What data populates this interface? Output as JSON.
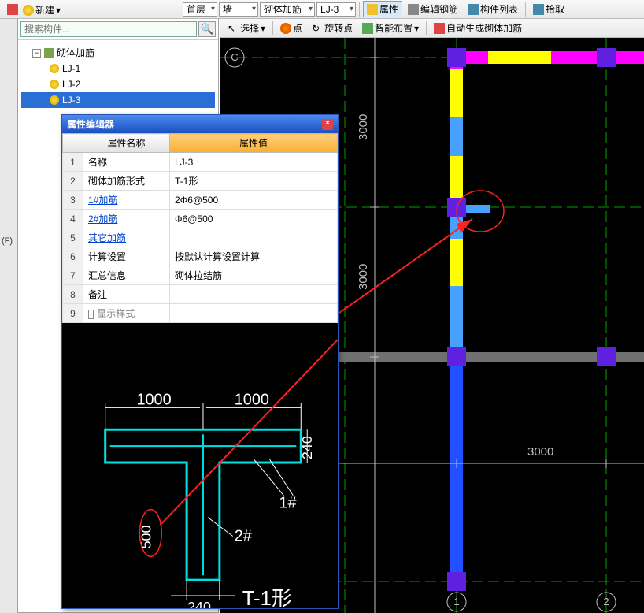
{
  "toolbar1": {
    "new": "新建",
    "dropdowns": {
      "floor": "首层",
      "type": "墙",
      "sub": "砌体加筋",
      "item": "LJ-3"
    },
    "btn_prop": "属性",
    "btn_edit": "编辑钢筋",
    "btn_list": "构件列表",
    "btn_pick": "拾取"
  },
  "toolbar2": {
    "select": "选择",
    "point": "点",
    "rotpoint": "旋转点",
    "smart": "智能布置",
    "auto": "自动生成砌体加筋"
  },
  "search": {
    "placeholder": "搜索构件..."
  },
  "tree": {
    "root": "砌体加筋",
    "items": [
      "LJ-1",
      "LJ-2",
      "LJ-3"
    ],
    "selected": 2
  },
  "leftlabel": "(F)",
  "propwin": {
    "title": "属性编辑器",
    "header_name": "属性名称",
    "header_value": "属性值",
    "rows": [
      {
        "n": "1",
        "name": "名称",
        "value": "LJ-3",
        "link": false
      },
      {
        "n": "2",
        "name": "砌体加筋形式",
        "value": "T-1形",
        "link": false
      },
      {
        "n": "3",
        "name": "1#加筋",
        "value": "2Φ6@500",
        "link": true
      },
      {
        "n": "4",
        "name": "2#加筋",
        "value": "Φ6@500",
        "link": true
      },
      {
        "n": "5",
        "name": "其它加筋",
        "value": "",
        "link": true
      },
      {
        "n": "6",
        "name": "计算设置",
        "value": "按默认计算设置计算",
        "link": false
      },
      {
        "n": "7",
        "name": "汇总信息",
        "value": "砌体拉结筋",
        "link": false
      },
      {
        "n": "8",
        "name": "备注",
        "value": "",
        "link": false
      },
      {
        "n": "9",
        "name": "显示样式",
        "value": "",
        "link": false,
        "gray": true,
        "exp": "+"
      }
    ]
  },
  "diagram": {
    "label_type": "T-1形",
    "dim1000a": "1000",
    "dim1000b": "1000",
    "dim240a": "240",
    "dim240b": "240",
    "dim500": "500",
    "mark1": "1#",
    "mark2": "2#",
    "colors": {
      "shape": "#00e0e0",
      "dim": "#ffffff",
      "red": "#ff2020"
    }
  },
  "canvas": {
    "dim3000a": "3000",
    "dim3000b": "3000",
    "dim3000c": "3000",
    "axisC": "C",
    "axis1": "1",
    "axis2": "2",
    "colors": {
      "bg": "#000000",
      "grid": "#00a000",
      "dim": "#c0c0c0",
      "wall_blue": "#2050ff",
      "wall_lblue": "#48a0ff",
      "wall_yellow": "#ffff00",
      "wall_magenta": "#ff00ff",
      "node": "#6020e0",
      "gray": "#707070",
      "red": "#ff2020"
    }
  }
}
